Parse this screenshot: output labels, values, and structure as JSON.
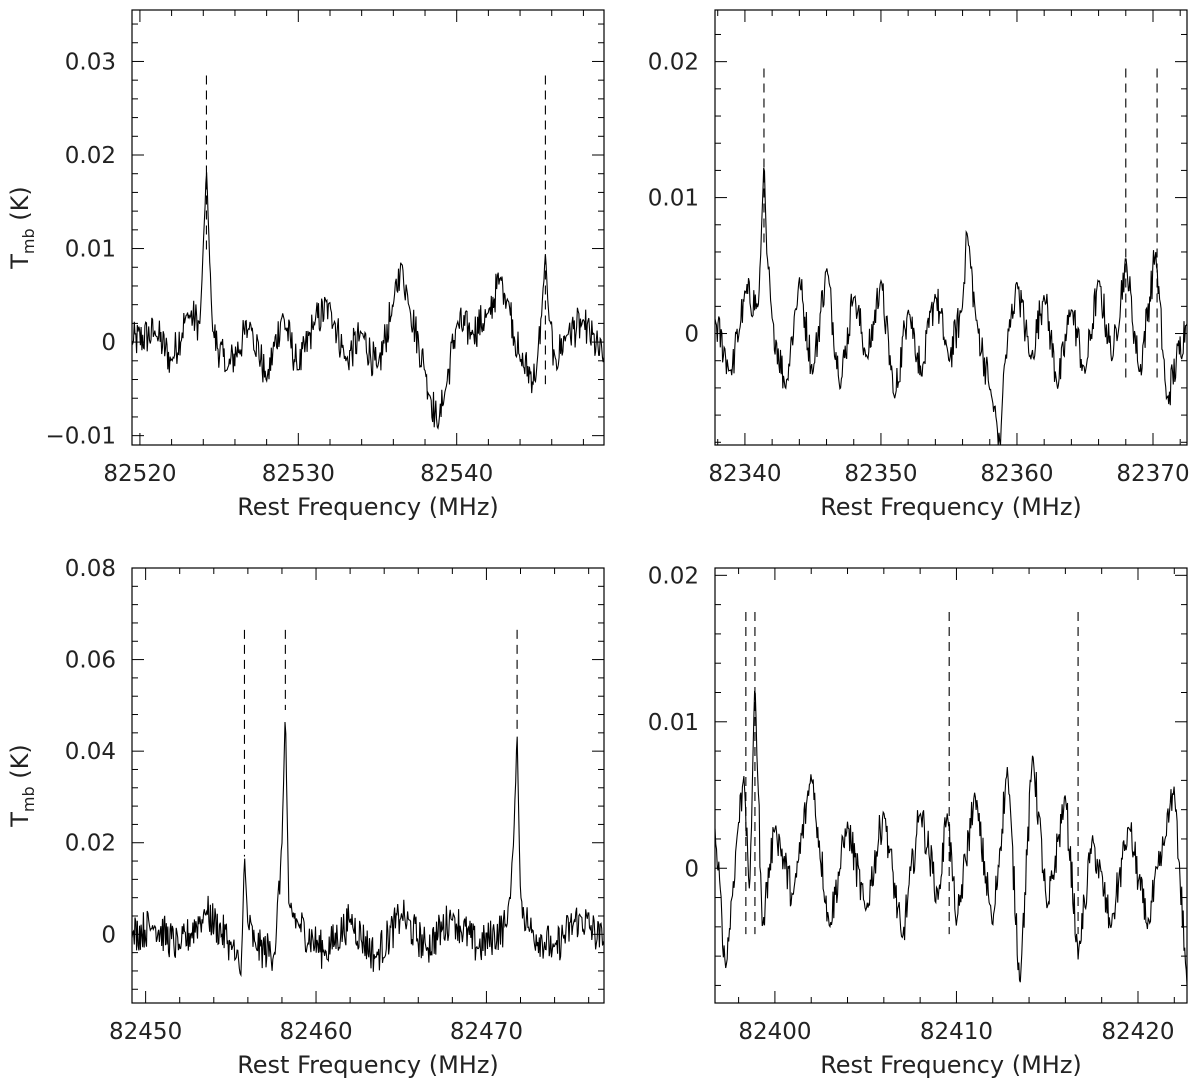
{
  "chart_data": [
    {
      "type": "line",
      "panel": "top-left",
      "xlabel": "Rest Frequency (MHz)",
      "ylabel_main": "T",
      "ylabel_sub": "mb",
      "ylabel_unit": "(K)",
      "xlim": [
        82519.5,
        82549.3
      ],
      "ylim": [
        -0.011,
        0.0355
      ],
      "xticks": [
        82520,
        82530,
        82540
      ],
      "yticks": [
        -0.01,
        0,
        0.01,
        0.02,
        0.03
      ],
      "ytick_labels": [
        "−0.01",
        "0",
        "0.01",
        "0.02",
        "0.03"
      ],
      "markers": [
        {
          "x": 82524.2,
          "y_top": 0.0285,
          "y_bottom": 0.0095
        },
        {
          "x": 82545.6,
          "y_top": 0.0285,
          "y_bottom": -0.0045
        }
      ],
      "series": [
        {
          "x": [
            82519.5,
            82521,
            82522,
            82523,
            82523.8,
            82524.0,
            82524.2,
            82524.4,
            82524.6,
            82525.5,
            82527,
            82528,
            82529,
            82530,
            82531,
            82532,
            82533,
            82534,
            82535,
            82536,
            82536.5,
            82537,
            82538,
            82538.8,
            82539.2,
            82540,
            82541,
            82542,
            82542.8,
            82543.3,
            82544,
            82545.0,
            82545.4,
            82545.6,
            82545.8,
            82546.2,
            82547,
            82548,
            82549.3
          ],
          "values": [
            0,
            0.001,
            -0.002,
            0.003,
            0.002,
            0.01,
            0.0185,
            0.009,
            0.001,
            -0.003,
            0.002,
            -0.004,
            0.003,
            -0.003,
            0.002,
            0.004,
            -0.002,
            0.001,
            -0.003,
            0.004,
            0.0085,
            0.004,
            -0.003,
            -0.009,
            -0.006,
            0.002,
            0.001,
            0.003,
            0.007,
            0.004,
            -0.002,
            -0.004,
            0.004,
            0.0095,
            0.003,
            -0.002,
            0.001,
            0.002,
            -0.002
          ]
        }
      ]
    },
    {
      "type": "line",
      "panel": "top-right",
      "xlabel": "Rest Frequency (MHz)",
      "ylabel_main": "",
      "ylabel_sub": "",
      "ylabel_unit": "",
      "xlim": [
        82337.8,
        82372.5
      ],
      "ylim": [
        -0.0082,
        0.0238
      ],
      "xticks": [
        82340,
        82350,
        82360,
        82370
      ],
      "yticks": [
        0,
        0.01,
        0.02
      ],
      "ytick_labels": [
        "0",
        "0.01",
        "0.02"
      ],
      "markers": [
        {
          "x": 82341.4,
          "y_top": 0.0195,
          "y_bottom": 0.0065
        },
        {
          "x": 82368.0,
          "y_top": 0.0195,
          "y_bottom": -0.0035
        },
        {
          "x": 82370.3,
          "y_top": 0.0195,
          "y_bottom": -0.0035
        }
      ],
      "series": [
        {
          "x": [
            82337.8,
            82339,
            82340,
            82341,
            82341.2,
            82341.4,
            82341.6,
            82342,
            82343,
            82344,
            82345,
            82346,
            82347,
            82348,
            82349,
            82350,
            82351,
            82352,
            82353,
            82354,
            82355,
            82356.0,
            82356.3,
            82357,
            82358,
            82358.8,
            82359,
            82360,
            82361,
            82362,
            82363,
            82364,
            82365,
            82366,
            82367,
            82368,
            82369,
            82370.2,
            82371,
            82372.5
          ],
          "values": [
            0.001,
            -0.003,
            0.003,
            0.002,
            0.007,
            0.013,
            0.006,
            0.001,
            -0.004,
            0.004,
            -0.003,
            0.005,
            -0.004,
            0.003,
            -0.002,
            0.004,
            -0.005,
            0.002,
            -0.003,
            0.003,
            -0.002,
            0.002,
            0.0078,
            0.001,
            -0.004,
            -0.0082,
            -0.003,
            0.004,
            -0.002,
            0.003,
            -0.004,
            0.002,
            -0.003,
            0.004,
            -0.002,
            0.0055,
            -0.003,
            0.006,
            -0.005,
            0.001
          ]
        }
      ]
    },
    {
      "type": "line",
      "panel": "bottom-left",
      "xlabel": "Rest Frequency (MHz)",
      "ylabel_main": "T",
      "ylabel_sub": "mb",
      "ylabel_unit": "(K)",
      "xlim": [
        82449.2,
        82476.9
      ],
      "ylim": [
        -0.015,
        0.08
      ],
      "xticks": [
        82450,
        82460,
        82470
      ],
      "yticks": [
        0,
        0.02,
        0.04,
        0.06,
        0.08
      ],
      "ytick_labels": [
        "0",
        "0.02",
        "0.04",
        "0.06",
        "0.08"
      ],
      "markers": [
        {
          "x": 82455.8,
          "y_top": 0.0665,
          "y_bottom": 0.017
        },
        {
          "x": 82458.2,
          "y_top": 0.0665,
          "y_bottom": 0.049
        },
        {
          "x": 82471.8,
          "y_top": 0.0665,
          "y_bottom": 0.044
        }
      ],
      "series": [
        {
          "x": [
            82449.2,
            82450.5,
            82452,
            82453.5,
            82455,
            82455.6,
            82455.8,
            82456.0,
            82456.5,
            82457.6,
            82458.0,
            82458.2,
            82458.4,
            82459,
            82460.5,
            82462,
            82463.5,
            82465,
            82466.5,
            82468,
            82469.5,
            82471.2,
            82471.6,
            82471.8,
            82472.0,
            82472.5,
            82474,
            82475.5,
            82476.9
          ],
          "values": [
            0,
            0.002,
            -0.003,
            0.005,
            -0.002,
            -0.009,
            0.017,
            0.002,
            -0.003,
            -0.004,
            0.02,
            0.049,
            0.006,
            0.002,
            -0.004,
            0.003,
            -0.005,
            0.004,
            -0.003,
            0.004,
            -0.003,
            0.002,
            0.02,
            0.044,
            0.008,
            0.001,
            -0.003,
            0.004,
            -0.002
          ]
        }
      ]
    },
    {
      "type": "line",
      "panel": "bottom-right",
      "xlabel": "Rest Frequency (MHz)",
      "ylabel_main": "",
      "ylabel_sub": "",
      "ylabel_unit": "",
      "xlim": [
        82396.7,
        82422.7
      ],
      "ylim": [
        -0.0092,
        0.0205
      ],
      "xticks": [
        82400,
        82410,
        82420
      ],
      "yticks": [
        0,
        0.01,
        0.02
      ],
      "ytick_labels": [
        "0",
        "0.01",
        "0.02"
      ],
      "markers": [
        {
          "x": 82398.4,
          "y_top": 0.0175,
          "y_bottom": -0.0045
        },
        {
          "x": 82398.9,
          "y_top": 0.0175,
          "y_bottom": -0.0045
        },
        {
          "x": 82409.6,
          "y_top": 0.0175,
          "y_bottom": -0.0045
        },
        {
          "x": 82416.7,
          "y_top": 0.0175,
          "y_bottom": -0.0045
        }
      ],
      "series": [
        {
          "x": [
            82396.7,
            82397.3,
            82397.9,
            82398.3,
            82398.6,
            82398.9,
            82399.3,
            82400,
            82401,
            82402,
            82403,
            82404,
            82405,
            82406,
            82407,
            82408,
            82409,
            82409.5,
            82410,
            82411,
            82412,
            82412.8,
            82413.5,
            82414.2,
            82415,
            82416,
            82416.7,
            82417.5,
            82418.5,
            82419.5,
            82420.5,
            82421.5,
            82422.0,
            82422.7
          ],
          "values": [
            0.0025,
            -0.007,
            0.002,
            0.0065,
            -0.002,
            0.013,
            -0.004,
            0.003,
            -0.002,
            0.0065,
            -0.004,
            0.003,
            -0.003,
            0.004,
            -0.005,
            0.004,
            -0.002,
            0.004,
            -0.004,
            0.005,
            -0.004,
            0.007,
            -0.008,
            0.008,
            -0.003,
            0.005,
            -0.006,
            0.002,
            -0.004,
            0.003,
            -0.004,
            0.002,
            0.0055,
            -0.008
          ]
        }
      ]
    }
  ]
}
